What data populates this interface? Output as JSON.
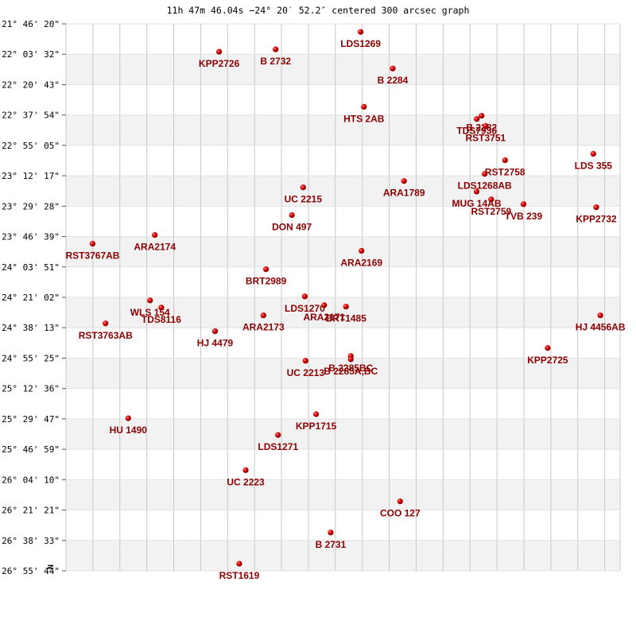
{
  "chart_data": {
    "type": "scatter",
    "title": "11h 47m 46.04s −24° 20′ 52.2″ centered 300 arcsec graph",
    "center": {
      "ra": "11h 47m 46.04s",
      "dec": "-24° 20′ 52.2″"
    },
    "field_arcsec": 300,
    "north_marker": "N",
    "xlim": [
      0,
      300
    ],
    "ylim": [
      0,
      300
    ],
    "y_ticks": [
      {
        "value": 0,
        "label": "-21° 46' 20\""
      },
      {
        "value": 16.67,
        "label": "-22° 03' 32\""
      },
      {
        "value": 33.33,
        "label": "-22° 20' 43\""
      },
      {
        "value": 50,
        "label": "-22° 37' 54\""
      },
      {
        "value": 66.67,
        "label": "-22° 55' 05\""
      },
      {
        "value": 83.33,
        "label": "-23° 12' 17\""
      },
      {
        "value": 100,
        "label": "-23° 29' 28\""
      },
      {
        "value": 116.67,
        "label": "-23° 46' 39\""
      },
      {
        "value": 133.33,
        "label": "-24° 03' 51\""
      },
      {
        "value": 150,
        "label": "-24° 21' 02\""
      },
      {
        "value": 166.67,
        "label": "-24° 38' 13\""
      },
      {
        "value": 183.33,
        "label": "-24° 55' 25\""
      },
      {
        "value": 200,
        "label": "-25° 12' 36\""
      },
      {
        "value": 216.67,
        "label": "-25° 29' 47\""
      },
      {
        "value": 233.33,
        "label": "-25° 46' 59\""
      },
      {
        "value": 250,
        "label": "-26° 04' 10\""
      },
      {
        "value": 266.67,
        "label": "-26° 21' 21\""
      },
      {
        "value": 283.33,
        "label": "-26° 38' 33\""
      },
      {
        "value": 300,
        "label": "-26° 55' 44\""
      }
    ],
    "x_gridlines": [
      0,
      14.58,
      29.17,
      43.75,
      58.33,
      72.92,
      87.5,
      102.08,
      116.67,
      131.25,
      145.83,
      160.42,
      175,
      189.58,
      204.17,
      218.75,
      233.33,
      247.92,
      262.5,
      277.08,
      291.67,
      300
    ],
    "stars": [
      {
        "name": "LDS1269",
        "x": 159.5,
        "y": 4.4
      },
      {
        "name": "B  2732",
        "x": 113.5,
        "y": 14.0
      },
      {
        "name": "KPP2726",
        "x": 82.9,
        "y": 15.3
      },
      {
        "name": "B  2284",
        "x": 176.9,
        "y": 24.5
      },
      {
        "name": "HTS   2AB",
        "x": 161.3,
        "y": 45.5
      },
      {
        "name": "B  2282",
        "x": 225.0,
        "y": 50.4
      },
      {
        "name": "TDS7936",
        "x": 222.4,
        "y": 52.2
      },
      {
        "name": "RST3751",
        "x": 227.2,
        "y": 56.0
      },
      {
        "name": "LDS 355",
        "x": 285.5,
        "y": 71.3
      },
      {
        "name": "RST2758",
        "x": 237.7,
        "y": 74.8
      },
      {
        "name": "ARA1789",
        "x": 183.0,
        "y": 86.2
      },
      {
        "name": "UC 2215",
        "x": 128.4,
        "y": 89.7
      },
      {
        "name": "LDS1268AB",
        "x": 226.7,
        "y": 82.3
      },
      {
        "name": "MUG  14AB",
        "x": 222.3,
        "y": 92.0
      },
      {
        "name": "RST2759",
        "x": 230.2,
        "y": 96.3
      },
      {
        "name": "TVB 239",
        "x": 247.7,
        "y": 98.9
      },
      {
        "name": "KPP2732",
        "x": 287.1,
        "y": 100.6
      },
      {
        "name": "DON 497",
        "x": 122.3,
        "y": 104.9
      },
      {
        "name": "ARA2174",
        "x": 48.1,
        "y": 115.8
      },
      {
        "name": "RST3767AB",
        "x": 14.4,
        "y": 120.6
      },
      {
        "name": "ARA2169",
        "x": 160.0,
        "y": 124.5
      },
      {
        "name": "BRT2989",
        "x": 108.3,
        "y": 134.6
      },
      {
        "name": "LDS1270",
        "x": 129.3,
        "y": 149.5
      },
      {
        "name": "WLS 154",
        "x": 45.5,
        "y": 151.7
      },
      {
        "name": "ARA2171",
        "x": 139.8,
        "y": 154.3
      },
      {
        "name": "BRT1485",
        "x": 151.6,
        "y": 155.1
      },
      {
        "name": "TDS8116",
        "x": 51.6,
        "y": 155.6
      },
      {
        "name": "ARA2173",
        "x": 106.9,
        "y": 159.9
      },
      {
        "name": "HJ 4456AB",
        "x": 289.3,
        "y": 159.9
      },
      {
        "name": "RST3763AB",
        "x": 21.4,
        "y": 164.3
      },
      {
        "name": "HJ 4479",
        "x": 80.7,
        "y": 168.6
      },
      {
        "name": "KPP2725",
        "x": 260.8,
        "y": 177.8
      },
      {
        "name": "B  2285BC",
        "x": 154.2,
        "y": 182.2
      },
      {
        "name": "B  2285A,BC",
        "x": 154.2,
        "y": 184.0
      },
      {
        "name": "UC 2213",
        "x": 129.7,
        "y": 184.8
      },
      {
        "name": "HU 1490",
        "x": 33.7,
        "y": 216.3
      },
      {
        "name": "KPP1715",
        "x": 135.4,
        "y": 214.1
      },
      {
        "name": "LDS1271",
        "x": 114.8,
        "y": 225.5
      },
      {
        "name": "UC 2223",
        "x": 97.3,
        "y": 244.8
      },
      {
        "name": "COO 127",
        "x": 180.9,
        "y": 261.9
      },
      {
        "name": "B  2731",
        "x": 143.3,
        "y": 279.0
      },
      {
        "name": "RST1619",
        "x": 93.8,
        "y": 296.1
      }
    ]
  }
}
